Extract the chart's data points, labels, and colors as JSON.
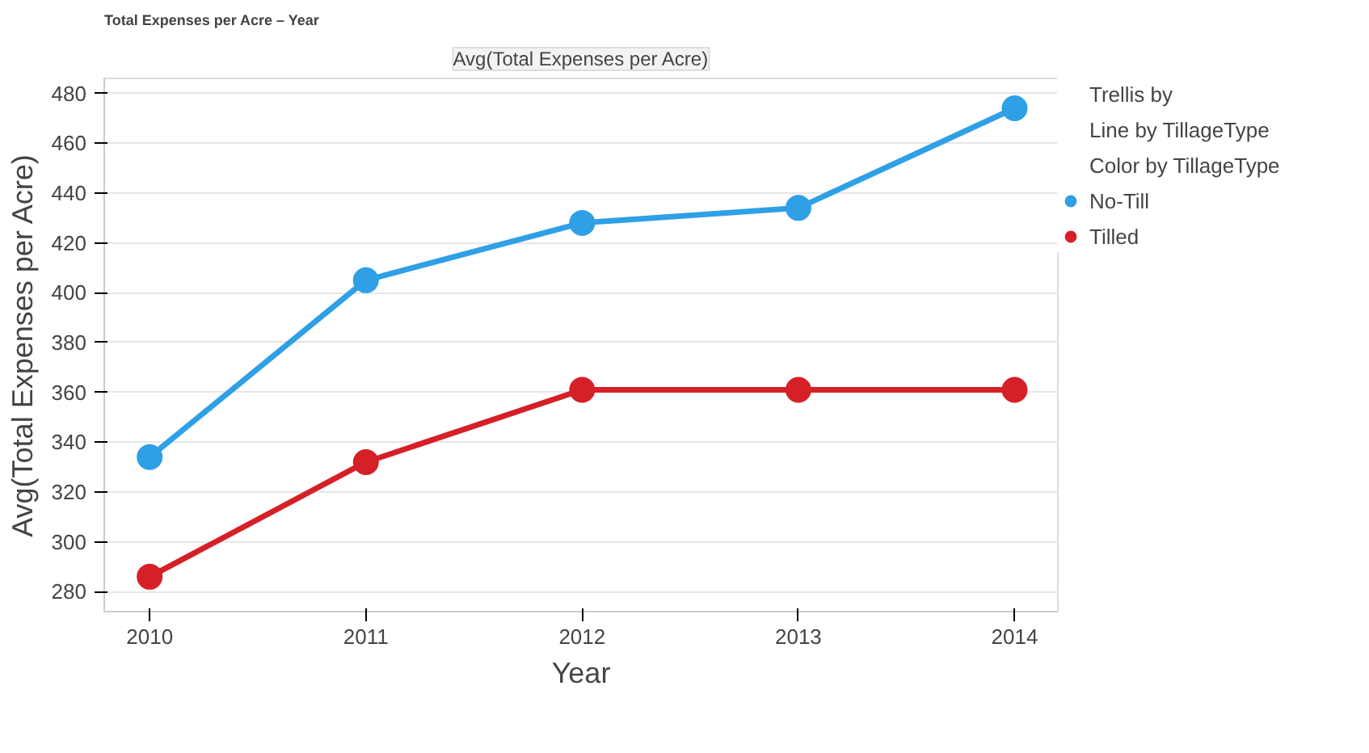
{
  "chart_data": {
    "type": "line",
    "title": "Total Expenses per Acre – Year",
    "subtitle": "Avg(Total Expenses per Acre)",
    "xlabel": "Year",
    "ylabel": "Avg(Total Expenses per Acre)",
    "legend_title": "Color by TillageType",
    "annotations": [
      "Trellis by",
      "Line by TillageType"
    ],
    "x": [
      2010,
      2011,
      2012,
      2013,
      2014
    ],
    "series": [
      {
        "name": "No-Till",
        "color": "#2fa0e6",
        "values": [
          334,
          405,
          428,
          434,
          474
        ]
      },
      {
        "name": "Tilled",
        "color": "#d62027",
        "values": [
          286,
          332,
          361,
          361,
          361
        ]
      }
    ],
    "xlim": [
      2009.79,
      2014.2
    ],
    "xticks": [
      2010,
      2011,
      2012,
      2013,
      2014
    ],
    "ylim": [
      272,
      486
    ],
    "yticks": [
      280,
      300,
      320,
      340,
      360,
      380,
      400,
      420,
      440,
      460,
      480
    ],
    "grid": "y",
    "legend": "right",
    "marker": "circle",
    "line_style": "solid"
  }
}
